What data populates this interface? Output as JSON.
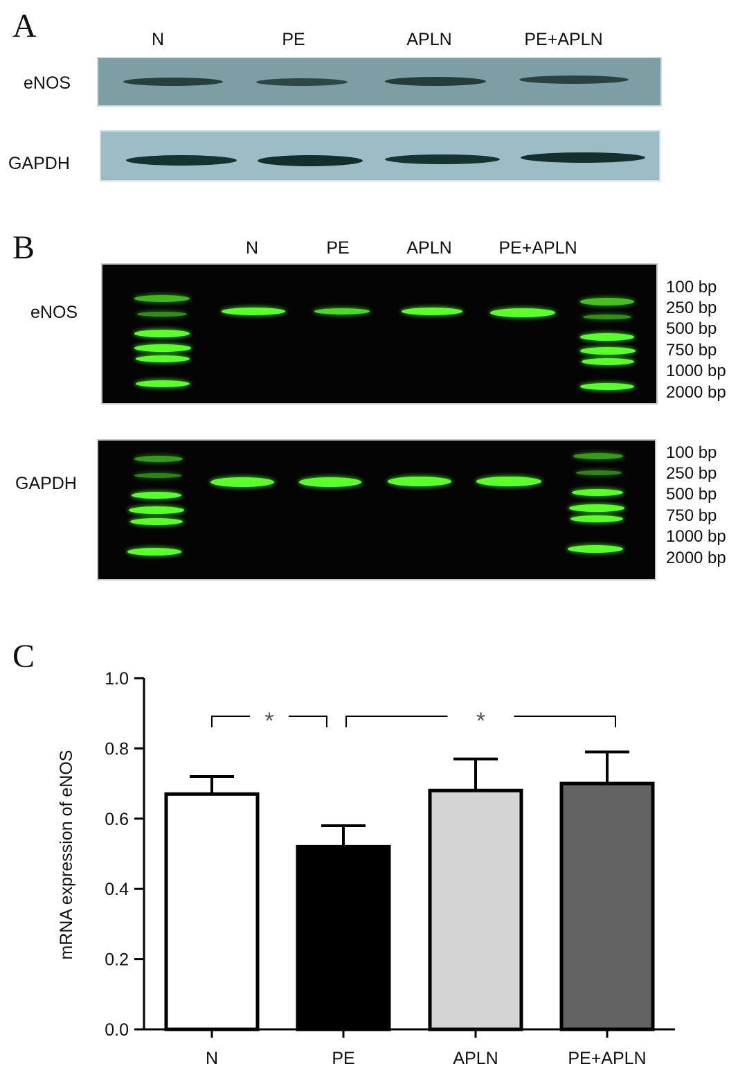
{
  "panel_a": {
    "letter": "A",
    "lanes": [
      "N",
      "PE",
      "APLN",
      "PE+APLN"
    ],
    "rows": [
      {
        "label": "eNOS",
        "background": "#7e9ea5"
      },
      {
        "label": "GAPDH",
        "background": "#9cbcc6"
      }
    ]
  },
  "panel_b": {
    "letter": "B",
    "lanes": [
      "N",
      "PE",
      "APLN",
      "PE+APLN"
    ],
    "rows": [
      {
        "label": "eNOS",
        "markers": [
          "100 bp",
          "250 bp",
          "500 bp",
          "750 bp",
          "1000 bp",
          "2000 bp"
        ]
      },
      {
        "label": "GAPDH",
        "markers": [
          "100 bp",
          "250 bp",
          "500 bp",
          "750 bp",
          "1000 bp",
          "2000 bp"
        ]
      }
    ],
    "band_color": "#5bff2a"
  },
  "panel_c": {
    "letter": "C",
    "significance_marker": "*"
  },
  "chart_data": {
    "type": "bar",
    "categories": [
      "N",
      "PE",
      "APLN",
      "PE+APLN"
    ],
    "values": [
      0.67,
      0.52,
      0.68,
      0.7
    ],
    "errors": [
      0.05,
      0.06,
      0.09,
      0.09
    ],
    "colors": [
      "#ffffff",
      "#000000",
      "#d4d4d4",
      "#636363"
    ],
    "ylabel": "mRNA expression of eNOS",
    "ylim": [
      0.0,
      1.0
    ],
    "yticks": [
      "0.0",
      "0.2",
      "0.4",
      "0.6",
      "0.8",
      "1.0"
    ],
    "significance": [
      {
        "from": "N",
        "to": "PE",
        "label": "*"
      },
      {
        "from": "PE",
        "to": "PE+APLN",
        "label": "*"
      }
    ]
  }
}
